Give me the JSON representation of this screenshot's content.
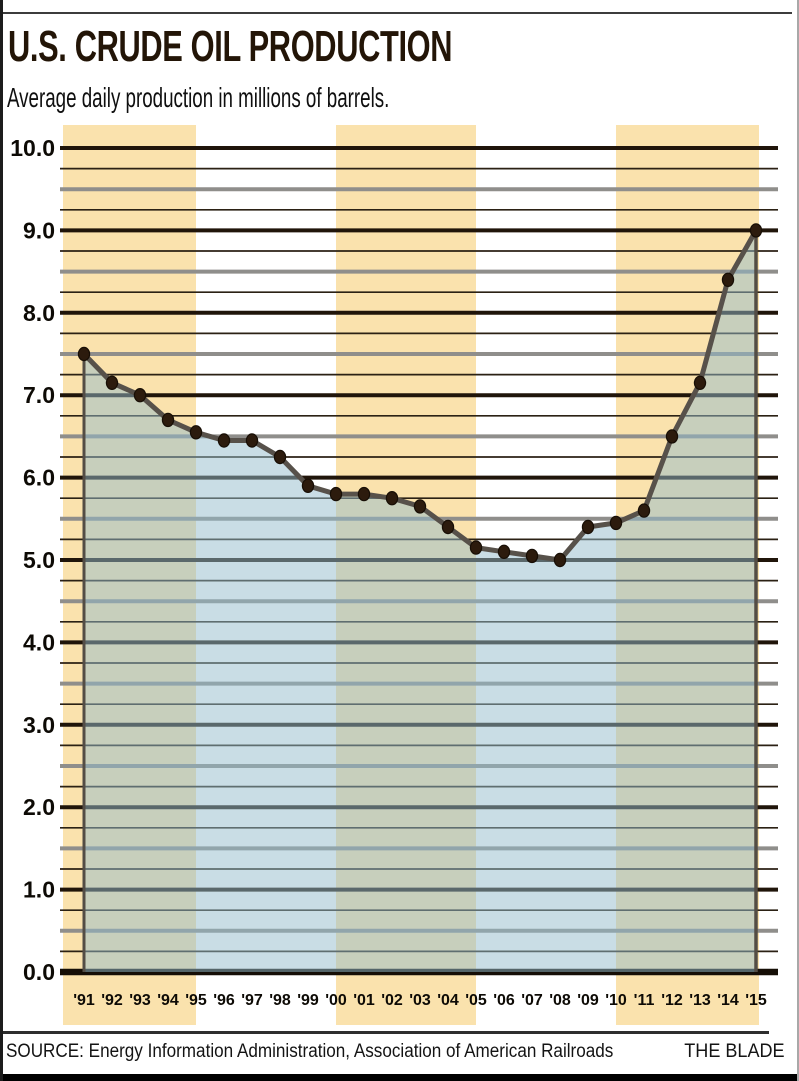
{
  "header": {
    "title": "U.S. CRUDE OIL PRODUCTION",
    "subtitle": "Average daily production in millions of barrels."
  },
  "footer": {
    "source": "SOURCE: Energy Information Administration, Association of American Railroads",
    "credit": "THE BLADE"
  },
  "chart_data": {
    "type": "area",
    "title": "U.S. CRUDE OIL PRODUCTION",
    "subtitle": "Average daily production in millions of barrels.",
    "x": [
      "'91",
      "'92",
      "'93",
      "'94",
      "'95",
      "'96",
      "'97",
      "'98",
      "'99",
      "'00",
      "'01",
      "'02",
      "'03",
      "'04",
      "'05",
      "'06",
      "'07",
      "'08",
      "'09",
      "'10",
      "'11",
      "'12",
      "'13",
      "'14",
      "'15"
    ],
    "values": [
      7.5,
      7.15,
      7.0,
      6.7,
      6.55,
      6.45,
      6.45,
      6.25,
      5.9,
      5.8,
      5.8,
      5.75,
      5.65,
      5.4,
      5.15,
      5.1,
      5.05,
      5.0,
      5.4,
      5.45,
      5.6,
      6.5,
      7.15,
      8.4,
      9.0
    ],
    "xlabel": "",
    "ylabel": "",
    "ylim": [
      0.0,
      10.0
    ],
    "ytick_step": 1.0,
    "minor_gridline_step": 0.25,
    "ytick_labels": [
      "0.0",
      "1.0",
      "2.0",
      "3.0",
      "4.0",
      "5.0",
      "6.0",
      "7.0",
      "8.0",
      "9.0",
      "10.0"
    ],
    "grid": "horizontal",
    "legend": "none",
    "markers": "filled dots on every year",
    "highlight_bands": [
      {
        "start_year": "'91",
        "end_year": "'95",
        "extend_left": true
      },
      {
        "start_year": "'00",
        "end_year": "'05",
        "extend_left": false
      },
      {
        "start_year": "'10",
        "end_year": "'15",
        "extend_right": true
      }
    ],
    "colors": {
      "band": "#fae2ad",
      "area_fill": "rgba(148,188,203,0.5)",
      "trend_line": "#57514a",
      "area_edge": "#534d45",
      "point_fill": "#2c1b0d",
      "point_stroke": "#170e05",
      "grid_major": "#20150a",
      "grid_half": "#8f8e8b",
      "grid_quarter": "#2b2114",
      "baseline": "#150e06",
      "axis_label": "#0d0a05",
      "title": "#231507"
    }
  }
}
